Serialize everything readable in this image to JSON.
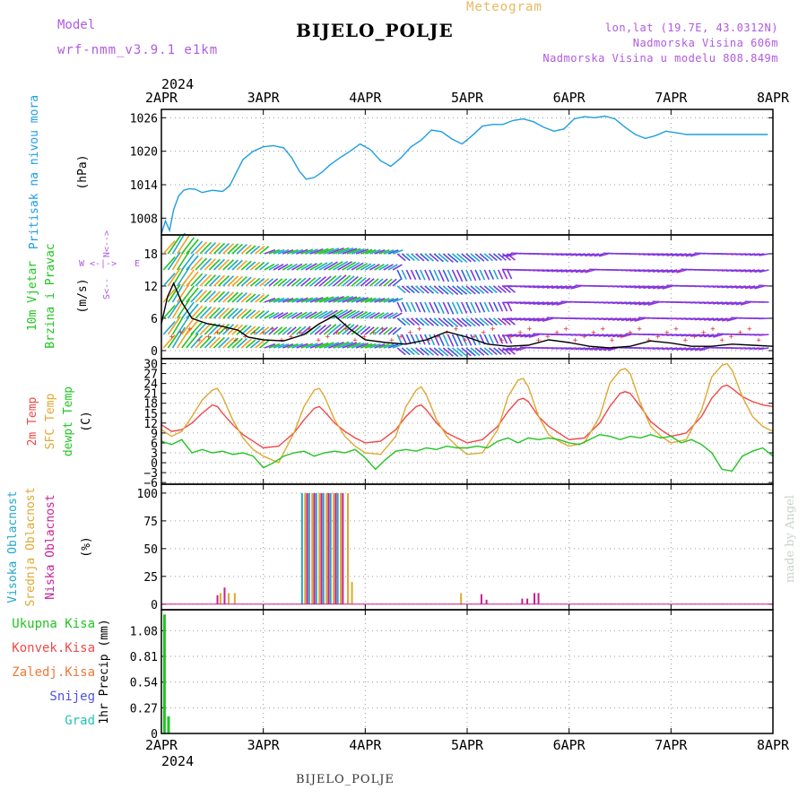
{
  "header": {
    "model_label": "Model",
    "model_name": "wrf-nmm_v3.9.1 e1km",
    "station": "BIJELO_POLJE",
    "subtitle": "Meteogram",
    "coords": "lon,lat (19.7E, 43.0312N)",
    "elevation": "Nadmorska Visina 606m",
    "model_elevation": "Nadmorska Visina u modelu 808.849m"
  },
  "footer": {
    "station": "BIJELO_POLJE",
    "credit": "made by Angel"
  },
  "colors": {
    "pressure": "#1e9ee0",
    "temp2m": "#f04848",
    "sfc_temp": "#e0a830",
    "dewpt": "#22c422",
    "high_cloud": "#22a8c8",
    "mid_cloud": "#e0a830",
    "low_cloud": "#c81e96",
    "precip": "#22c422",
    "label_purple": "#b05ae0"
  },
  "chart_data": [
    {
      "type": "line",
      "panel": "pressure",
      "ylabel": "Pritisak na nivou mora",
      "unit": "(hPa)",
      "yticks": [
        1008,
        1014,
        1020,
        1026
      ],
      "ylim": [
        1005,
        1027.5
      ],
      "x_labels": [
        "2APR",
        "3APR",
        "4APR",
        "5APR",
        "6APR",
        "7APR",
        "8APR"
      ],
      "x_year": "2024",
      "grid": true,
      "series": [
        {
          "color": "#1e9ee0",
          "x": [
            0,
            0.04,
            0.08,
            0.12,
            0.17,
            0.22,
            0.27,
            0.33,
            0.4,
            0.5,
            0.6,
            0.67,
            0.73,
            0.8,
            0.9,
            1.0,
            1.1,
            1.2,
            1.28,
            1.35,
            1.42,
            1.5,
            1.58,
            1.65,
            1.75,
            1.85,
            1.95,
            2.05,
            2.15,
            2.25,
            2.35,
            2.45,
            2.55,
            2.65,
            2.75,
            2.85,
            2.95,
            3.05,
            3.15,
            3.25,
            3.35,
            3.45,
            3.55,
            3.65,
            3.75,
            3.85,
            3.95,
            4.05,
            4.15,
            4.25,
            4.35,
            4.45,
            4.55,
            4.65,
            4.75,
            4.85,
            4.95,
            5.05,
            5.15,
            5.25,
            5.35,
            5.45,
            5.55,
            5.65,
            5.75,
            5.85,
            5.95
          ],
          "values": [
            1005.2,
            1007.5,
            1005.8,
            1009.5,
            1012.0,
            1013.0,
            1013.3,
            1013.2,
            1012.6,
            1013.0,
            1012.8,
            1013.8,
            1016.0,
            1018.5,
            1020.0,
            1020.8,
            1021.0,
            1020.6,
            1018.8,
            1016.5,
            1015.0,
            1015.3,
            1016.3,
            1017.5,
            1018.8,
            1020.0,
            1021.3,
            1020.3,
            1018.3,
            1017.3,
            1018.8,
            1020.8,
            1022.0,
            1023.8,
            1023.5,
            1022.2,
            1021.3,
            1022.8,
            1024.5,
            1024.8,
            1024.8,
            1025.5,
            1025.8,
            1025.3,
            1024.3,
            1023.6,
            1024.0,
            1025.8,
            1026.2,
            1026.0,
            1026.3,
            1025.8,
            1024.3,
            1023.0,
            1022.3,
            1022.8,
            1023.6,
            1023.3,
            1023.0,
            1023.0,
            1023.0,
            1023.0,
            1023.0,
            1023.0,
            1023.0,
            1023.0,
            1023.0
          ]
        }
      ]
    },
    {
      "type": "line",
      "panel": "wind",
      "ylabel": "10m Vjetar Brzina i Pravac",
      "unit": "(m/s)",
      "yticks": [
        0,
        6,
        12,
        18
      ],
      "ylim": [
        -1.5,
        21.5
      ],
      "compass": {
        "n": "N",
        "w": "W",
        "e": "E",
        "s": "S"
      },
      "grid": true,
      "series": [
        {
          "name": "speed",
          "color": "#000000",
          "x": [
            0,
            0.06,
            0.12,
            0.2,
            0.3,
            0.45,
            0.6,
            0.75,
            0.85,
            1.0,
            1.2,
            1.4,
            1.55,
            1.7,
            1.85,
            2.0,
            2.2,
            2.4,
            2.6,
            2.8,
            3.0,
            3.2,
            3.4,
            3.6,
            3.8,
            4.0,
            4.2,
            4.4,
            4.6,
            4.8,
            5.0,
            5.2,
            5.4,
            5.6,
            5.8,
            6.0
          ],
          "values": [
            5,
            10,
            12.5,
            9,
            6,
            5,
            4.5,
            3.8,
            2.5,
            2,
            1.8,
            3,
            5,
            6.5,
            4,
            2,
            1.5,
            1.2,
            2,
            3.5,
            2.5,
            1.2,
            0.8,
            1,
            2,
            1.5,
            0.8,
            0.5,
            0.8,
            1.8,
            1.4,
            0.8,
            0.8,
            1.2,
            1,
            0.8
          ]
        }
      ]
    },
    {
      "type": "line",
      "panel": "temperature",
      "ylabel_lines": [
        "2m Temp",
        "SFC Temp",
        "dewpt Temp"
      ],
      "unit": "(C)",
      "yticks": [
        -6,
        -3,
        0,
        3,
        6,
        9,
        12,
        15,
        18,
        21,
        24,
        27,
        30
      ],
      "ytick_labels": [
        "−6",
        "−3",
        "0",
        "3",
        "6",
        "9",
        "12",
        "15",
        "18",
        "21",
        "24",
        "27",
        "30"
      ],
      "ylim": [
        -6.5,
        31.5
      ],
      "grid": true,
      "series": [
        {
          "name": "2m Temp",
          "color": "#f04848",
          "x": [
            0,
            0.1,
            0.2,
            0.3,
            0.4,
            0.5,
            0.55,
            0.6,
            0.7,
            0.8,
            0.9,
            1.0,
            1.15,
            1.3,
            1.4,
            1.5,
            1.55,
            1.6,
            1.7,
            1.8,
            1.9,
            2.0,
            2.15,
            2.3,
            2.4,
            2.5,
            2.55,
            2.6,
            2.7,
            2.8,
            2.9,
            3.0,
            3.15,
            3.3,
            3.4,
            3.5,
            3.55,
            3.6,
            3.7,
            3.8,
            3.9,
            4.0,
            4.15,
            4.3,
            4.4,
            4.5,
            4.55,
            4.6,
            4.7,
            4.8,
            4.9,
            5.0,
            5.15,
            5.3,
            5.4,
            5.5,
            5.55,
            5.6,
            5.7,
            5.8,
            5.9,
            6.0
          ],
          "values": [
            11.5,
            9.5,
            10,
            12,
            15,
            17.5,
            17,
            15,
            11.5,
            8.5,
            6.5,
            4.5,
            5,
            9,
            13,
            16.5,
            17,
            15.5,
            12,
            9.5,
            7.5,
            6,
            6.5,
            10,
            14,
            17,
            17.5,
            16,
            12,
            9,
            7.5,
            6,
            7,
            11,
            15.5,
            19,
            19.5,
            18.5,
            14,
            11,
            9,
            7,
            7.5,
            12,
            17,
            21,
            21.5,
            21,
            17,
            12.5,
            10,
            8,
            9,
            14,
            19.5,
            23,
            23.5,
            22.5,
            20,
            18.5,
            17.5,
            17
          ]
        },
        {
          "name": "SFC Temp",
          "color": "#e0a830",
          "x": [
            0,
            0.1,
            0.2,
            0.3,
            0.4,
            0.5,
            0.55,
            0.6,
            0.7,
            0.8,
            0.9,
            1.0,
            1.15,
            1.3,
            1.4,
            1.5,
            1.55,
            1.6,
            1.7,
            1.8,
            1.9,
            2.0,
            2.15,
            2.3,
            2.4,
            2.5,
            2.55,
            2.6,
            2.7,
            2.8,
            2.9,
            3.0,
            3.15,
            3.3,
            3.4,
            3.5,
            3.55,
            3.6,
            3.7,
            3.8,
            3.9,
            4.0,
            4.15,
            4.3,
            4.4,
            4.5,
            4.55,
            4.6,
            4.7,
            4.8,
            4.9,
            5.0,
            5.15,
            5.3,
            5.4,
            5.5,
            5.55,
            5.6,
            5.7,
            5.8,
            5.9,
            6.0
          ],
          "values": [
            10,
            8,
            9.5,
            14,
            19,
            22,
            22.5,
            20,
            13,
            7.5,
            4,
            2,
            0,
            9,
            17,
            22,
            22.5,
            20,
            13,
            8,
            5,
            3,
            2.5,
            8,
            17,
            22,
            23,
            20.5,
            13,
            8,
            5,
            2.5,
            3,
            10,
            20,
            25,
            25.5,
            23,
            14,
            8.5,
            6.5,
            5,
            6,
            14,
            24,
            28,
            28.5,
            27,
            18,
            11,
            8,
            6,
            7,
            16,
            26,
            29.5,
            30,
            28,
            20,
            14,
            11,
            9.5
          ]
        },
        {
          "name": "dewpt Temp",
          "color": "#22c422",
          "x": [
            0,
            0.1,
            0.2,
            0.3,
            0.4,
            0.5,
            0.6,
            0.7,
            0.8,
            0.9,
            1.0,
            1.1,
            1.2,
            1.3,
            1.4,
            1.5,
            1.6,
            1.7,
            1.8,
            1.9,
            2.0,
            2.1,
            2.2,
            2.3,
            2.4,
            2.5,
            2.6,
            2.7,
            2.8,
            2.9,
            3.0,
            3.1,
            3.2,
            3.3,
            3.4,
            3.5,
            3.6,
            3.7,
            3.8,
            3.9,
            4.0,
            4.1,
            4.2,
            4.3,
            4.4,
            4.5,
            4.6,
            4.7,
            4.8,
            4.9,
            5.0,
            5.1,
            5.2,
            5.3,
            5.4,
            5.5,
            5.6,
            5.7,
            5.8,
            5.9,
            6.0
          ],
          "values": [
            6.5,
            5.5,
            7,
            3,
            4,
            3,
            3.5,
            2.5,
            3,
            2,
            -1.5,
            0,
            2,
            3,
            3.5,
            2,
            3,
            3.5,
            3,
            4,
            1.5,
            -2,
            1,
            3.5,
            4,
            3.5,
            4.5,
            4,
            5,
            4.5,
            4.5,
            5,
            4.5,
            6.5,
            7.5,
            6,
            7.5,
            7,
            7.5,
            7,
            6,
            5.5,
            7,
            8.5,
            8,
            7,
            8,
            7.5,
            8.5,
            7.5,
            8,
            6,
            7,
            5.5,
            3,
            -2,
            -2.5,
            2,
            3.5,
            4.5,
            2
          ]
        }
      ]
    },
    {
      "type": "bar",
      "panel": "cloud",
      "ylabel_lines": [
        "Visoka Oblacnost",
        "Srednja Oblacnost",
        "Niska Oblacnost"
      ],
      "unit": "(%)",
      "yticks": [
        0,
        25,
        50,
        75,
        100
      ],
      "ylim": [
        -5,
        108
      ],
      "grid": true,
      "series": [
        {
          "name": "Visoka Oblacnost",
          "color": "#22a8c8",
          "x": [
            1.38,
            1.45,
            1.52,
            1.59,
            1.66,
            1.73
          ],
          "values": [
            100,
            100,
            100,
            100,
            100,
            100
          ]
        },
        {
          "name": "Srednja Oblacnost",
          "color": "#e0a830",
          "x": [
            0.58,
            0.66,
            0.72,
            1.41,
            1.48,
            1.55,
            1.62,
            1.69,
            1.76,
            1.83,
            1.87,
            2.94
          ],
          "values": [
            10,
            10,
            10,
            100,
            100,
            100,
            100,
            100,
            100,
            100,
            20,
            10
          ]
        },
        {
          "name": "Niska Oblacnost",
          "color": "#c81e96",
          "x": [
            0.55,
            0.62,
            1.43,
            1.5,
            1.57,
            1.64,
            1.71,
            1.78,
            3.14,
            3.19,
            3.54,
            3.59,
            3.66,
            3.7
          ],
          "values": [
            8,
            15,
            100,
            100,
            100,
            100,
            100,
            100,
            9,
            4,
            5,
            5,
            10,
            10
          ]
        }
      ]
    },
    {
      "type": "bar",
      "panel": "precip",
      "ylabel": "1hr Precip",
      "unit": "(mm)",
      "legend": [
        "Ukupna Kisa",
        "Konvek.Kisa",
        "Zaledj.Kisa",
        "Snijeg",
        "Grad"
      ],
      "legend_colors": [
        "#22c422",
        "#f04848",
        "#f07838",
        "#5050e0",
        "#22c4b4"
      ],
      "yticks": [
        0,
        0.27,
        0.54,
        0.81,
        1.08
      ],
      "ylim": [
        0,
        1.3
      ],
      "grid": true,
      "series": [
        {
          "name": "Ukupna Kisa",
          "color": "#22c422",
          "x": [
            0.03,
            0.07
          ],
          "values": [
            1.25,
            0.18
          ]
        }
      ]
    }
  ]
}
